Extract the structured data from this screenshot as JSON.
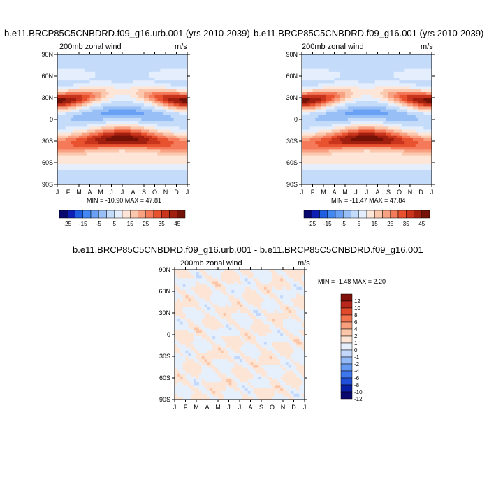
{
  "chart_data": [
    {
      "type": "heatmap",
      "title": "b.e11.BRCP85C5CNBDRD.f09_g16.urb.001 (yrs 2010-2039)",
      "left_label": "200mb zonal wind",
      "units": "m/s",
      "minmax": "MIN = -10.90 MAX =  47.81",
      "x_ticks": [
        "J",
        "F",
        "M",
        "A",
        "M",
        "J",
        "J",
        "A",
        "S",
        "O",
        "N",
        "D",
        "J"
      ],
      "y_ticks": [
        "90N",
        "60N",
        "30N",
        "0",
        "30S",
        "60S",
        "90S"
      ],
      "ylim": [
        -90,
        90
      ],
      "colorbar": {
        "orientation": "horizontal",
        "levels": [
          -30,
          -25,
          -20,
          -15,
          -10,
          -5,
          0,
          5,
          10,
          15,
          20,
          25,
          30,
          35,
          40,
          45
        ],
        "labels": [
          "-25",
          "-15",
          "-5",
          "5",
          "15",
          "25",
          "35",
          "45"
        ]
      }
    },
    {
      "type": "heatmap",
      "title": "b.e11.BRCP85C5CNBDRD.f09_g16.001 (yrs 2010-2039)",
      "left_label": "200mb zonal wind",
      "units": "m/s",
      "minmax": "MIN = -11.47 MAX =  47.84",
      "x_ticks": [
        "J",
        "F",
        "M",
        "A",
        "M",
        "J",
        "J",
        "A",
        "S",
        "O",
        "N",
        "D",
        "J"
      ],
      "y_ticks": [
        "90N",
        "60N",
        "30N",
        "0",
        "30S",
        "60S",
        "90S"
      ],
      "ylim": [
        -90,
        90
      ],
      "colorbar": {
        "orientation": "horizontal",
        "levels": [
          -30,
          -25,
          -20,
          -15,
          -10,
          -5,
          0,
          5,
          10,
          15,
          20,
          25,
          30,
          35,
          40,
          45
        ],
        "labels": [
          "-25",
          "-15",
          "-5",
          "5",
          "15",
          "25",
          "35",
          "45"
        ]
      }
    },
    {
      "type": "heatmap",
      "title": "b.e11.BRCP85C5CNBDRD.f09_g16.urb.001 - b.e11.BRCP85C5CNBDRD.f09_g16.001",
      "left_label": "200mb zonal wind",
      "units": "m/s",
      "minmax": "MIN =  -1.48 MAX =   2.20",
      "x_ticks": [
        "J",
        "F",
        "M",
        "A",
        "M",
        "J",
        "J",
        "A",
        "S",
        "O",
        "N",
        "D",
        "J"
      ],
      "y_ticks": [
        "90N",
        "60N",
        "30N",
        "0",
        "30S",
        "60S",
        "90S"
      ],
      "ylim": [
        -90,
        90
      ],
      "colorbar": {
        "orientation": "vertical",
        "labels": [
          "12",
          "10",
          "8",
          "6",
          "4",
          "2",
          "1",
          "0",
          "-1",
          "-2",
          "-4",
          "-6",
          "-8",
          "-10",
          "-12"
        ]
      }
    }
  ],
  "colors": {
    "full_palette": [
      "#08086e",
      "#0d1fb5",
      "#1f5ee0",
      "#4287f2",
      "#6aa1f5",
      "#98c0f7",
      "#c4dbfa",
      "#e4eefd",
      "#fde6d8",
      "#fbc8ae",
      "#f8a283",
      "#f47a5a",
      "#e8522f",
      "#c8341c",
      "#a11f0e",
      "#741208"
    ],
    "diff_palette": [
      "#08086e",
      "#0a1fa8",
      "#1f4fd8",
      "#3d76ed",
      "#6699f2",
      "#94b9f7",
      "#c3d8fb",
      "#e6f0fd",
      "#fde5d6",
      "#fbc6a8",
      "#f8a07d",
      "#f27550",
      "#e04a2b",
      "#b8271a",
      "#80120b"
    ]
  }
}
